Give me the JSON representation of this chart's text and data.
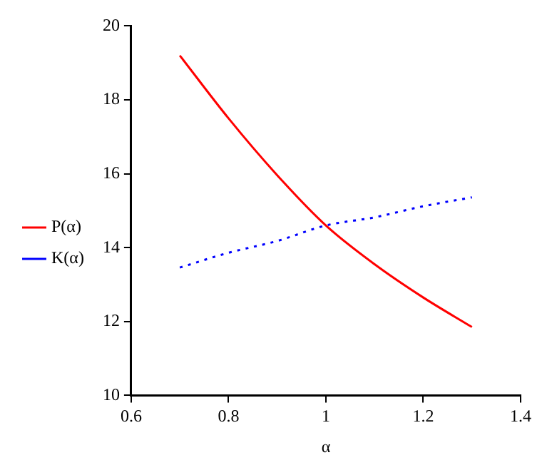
{
  "chart_data": {
    "type": "line",
    "xlabel": "α",
    "x": [
      0.7,
      0.8,
      0.9,
      1.0,
      1.1,
      1.2,
      1.3
    ],
    "series": [
      {
        "name": "P(α)",
        "color": "#ff0000",
        "line_style": "solid",
        "values": [
          19.2,
          17.5,
          15.96,
          14.6,
          13.55,
          12.65,
          11.85
        ]
      },
      {
        "name": "K(α)",
        "color": "#0000ff",
        "line_style": "dotted",
        "values": [
          13.46,
          13.86,
          14.18,
          14.6,
          14.82,
          15.12,
          15.36
        ]
      }
    ],
    "xlim": [
      0.6,
      1.4
    ],
    "xticks": [
      0.6,
      0.8,
      1,
      1.2,
      1.4
    ],
    "ylim": [
      10,
      20
    ],
    "yticks": [
      10,
      12,
      14,
      16,
      18,
      20
    ],
    "grid": false,
    "legend": "left",
    "marker": "none"
  }
}
